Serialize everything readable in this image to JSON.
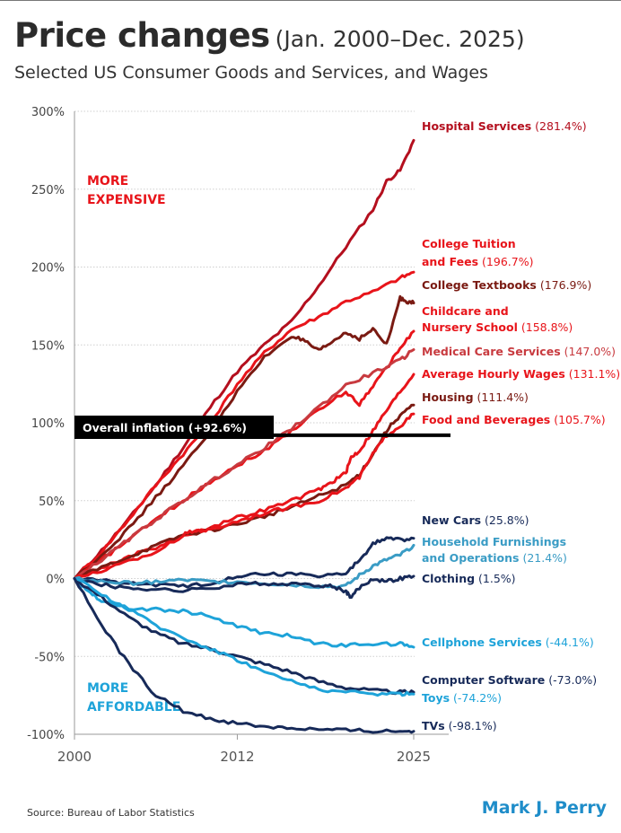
{
  "title": "Price changes",
  "date_range": "(Jan. 2000–Dec. 2025)",
  "subtitle": "Selected US Consumer Goods and Services, and Wages",
  "source": "Source:  Bureau of Labor Statistics",
  "brand": "Mark J. Perry",
  "colors": {
    "red": "#e8141a",
    "dark_red": "#b40f1e",
    "brown": "#7a1a12",
    "rose": "#c83a3f",
    "navy": "#172a59",
    "light_blue": "#1ea3d9",
    "teal_blue": "#3a9cc5",
    "inflation_box": "#000000",
    "grid": "#cfcfcf"
  },
  "chart_data": {
    "type": "line",
    "x_domain": [
      2000,
      2025
    ],
    "ylim": [
      -100,
      300
    ],
    "y_unit": "%",
    "y_ticks": [
      "300%",
      "250%",
      "200%",
      "150%",
      "100%",
      "50%",
      "0%",
      "-50%",
      "-100%"
    ],
    "y_tick_values": [
      300,
      250,
      200,
      150,
      100,
      50,
      0,
      -50,
      -100
    ],
    "x_ticks": [
      "2000",
      "2012",
      "2025"
    ],
    "x_tick_values": [
      2000,
      2012,
      2025
    ],
    "grid": "horizontal dotted",
    "region_labels": {
      "more_expensive": [
        "MORE",
        "EXPENSIVE"
      ],
      "more_affordable": [
        "MORE",
        "AFFORDABLE"
      ]
    },
    "reference_line": {
      "label": "Overall inflation (+92.6%)",
      "value": 92.6
    },
    "series": [
      {
        "name": "Hospital Services",
        "label": [
          "Hospital Services"
        ],
        "value_text": "(281.4%)",
        "final": 281.4,
        "color": "#b40f1e",
        "x": [
          2000,
          2002,
          2004,
          2006,
          2008,
          2010,
          2012,
          2014,
          2016,
          2018,
          2020,
          2022,
          2023,
          2024,
          2025
        ],
        "y": [
          0,
          18,
          38,
          60,
          84,
          110,
          133,
          150,
          165,
          188,
          213,
          237,
          255,
          262,
          281.4
        ]
      },
      {
        "name": "College Tuition and Fees",
        "label": [
          "College Tuition",
          "and Fees"
        ],
        "value_text": "(196.7%)",
        "final": 196.7,
        "color": "#e8141a",
        "x": [
          2000,
          2002,
          2004,
          2006,
          2008,
          2010,
          2012,
          2014,
          2016,
          2018,
          2020,
          2022,
          2024,
          2025
        ],
        "y": [
          0,
          17,
          38,
          60,
          80,
          100,
          125,
          145,
          160,
          168,
          178,
          184,
          193,
          196.7
        ]
      },
      {
        "name": "College Textbooks",
        "label": [
          "College Textbooks"
        ],
        "value_text": "(176.9%)",
        "final": 176.9,
        "color": "#7a1a12",
        "x": [
          2000,
          2002,
          2004,
          2006,
          2008,
          2010,
          2012,
          2014,
          2016,
          2017,
          2018,
          2019,
          2020,
          2021,
          2022,
          2023,
          2024,
          2024.5,
          2025
        ],
        "y": [
          0,
          15,
          32,
          52,
          72,
          95,
          120,
          142,
          156,
          152,
          146,
          152,
          158,
          154,
          160,
          150,
          180,
          178,
          176.9
        ]
      },
      {
        "name": "Childcare and Nursery School",
        "label": [
          "Childcare and",
          "Nursery School"
        ],
        "value_text": "(158.8%)",
        "final": 158.8,
        "color": "#e8141a",
        "x": [
          2000,
          2002,
          2004,
          2006,
          2008,
          2010,
          2012,
          2014,
          2016,
          2018,
          2020,
          2021,
          2022,
          2023,
          2024,
          2025
        ],
        "y": [
          0,
          12,
          25,
          38,
          50,
          62,
          73,
          82,
          95,
          108,
          120,
          112,
          124,
          135,
          148,
          158.8
        ]
      },
      {
        "name": "Medical Care Services",
        "label": [
          "Medical Care Services"
        ],
        "value_text": "(147.0%)",
        "final": 147.0,
        "color": "#c83a3f",
        "x": [
          2000,
          2002,
          2004,
          2006,
          2008,
          2010,
          2012,
          2014,
          2016,
          2018,
          2020,
          2022,
          2024,
          2025
        ],
        "y": [
          0,
          12,
          25,
          38,
          50,
          62,
          73,
          84,
          96,
          110,
          124,
          132,
          140,
          147.0
        ]
      },
      {
        "name": "Average Hourly Wages",
        "label": [
          "Average Hourly Wages"
        ],
        "value_text": "(131.1%)",
        "final": 131.1,
        "color": "#e8141a",
        "x": [
          2000,
          2002,
          2004,
          2006,
          2008,
          2010,
          2012,
          2014,
          2016,
          2018,
          2019,
          2020,
          2020.4,
          2021,
          2022,
          2023,
          2024,
          2025
        ],
        "y": [
          0,
          7,
          14,
          20,
          27,
          33,
          39,
          44,
          50,
          57,
          62,
          68,
          78,
          82,
          95,
          108,
          120,
          131.1
        ]
      },
      {
        "name": "Housing",
        "label": [
          "Housing"
        ],
        "value_text": "(111.4%)",
        "final": 111.4,
        "color": "#7a1a12",
        "x": [
          2000,
          2002,
          2004,
          2006,
          2008,
          2010,
          2012,
          2014,
          2016,
          2018,
          2020,
          2021,
          2022,
          2023,
          2024,
          2025
        ],
        "y": [
          0,
          7,
          14,
          21,
          28,
          31,
          35,
          40,
          46,
          53,
          60,
          67,
          80,
          95,
          105,
          111.4
        ]
      },
      {
        "name": "Food and Beverages",
        "label": [
          "Food and Beverages"
        ],
        "value_text": "(105.7%)",
        "final": 105.7,
        "color": "#e8141a",
        "x": [
          2000,
          2002,
          2004,
          2006,
          2008,
          2009,
          2010,
          2012,
          2014,
          2016,
          2018,
          2020,
          2021,
          2022,
          2023,
          2024,
          2025
        ],
        "y": [
          0,
          5,
          11,
          17,
          28,
          31,
          31,
          37,
          42,
          46,
          50,
          58,
          65,
          80,
          92,
          98,
          105.7
        ]
      },
      {
        "name": "New Cars",
        "label": [
          "New Cars"
        ],
        "value_text": "(25.8%)",
        "final": 25.8,
        "color": "#172a59",
        "x": [
          2000,
          2002,
          2004,
          2006,
          2008,
          2010,
          2012,
          2014,
          2016,
          2018,
          2020,
          2021,
          2022,
          2023,
          2024,
          2025
        ],
        "y": [
          0,
          -1,
          -3,
          -4,
          -5,
          -3,
          2,
          3,
          3,
          2,
          3,
          12,
          22,
          26,
          25,
          25.8
        ]
      },
      {
        "name": "Household Furnishings and Operations",
        "label": [
          "Household Furnishings",
          "and Operations"
        ],
        "value_text": "(21.4%)",
        "final": 21.4,
        "color": "#3a9cc5",
        "x": [
          2000,
          2002,
          2004,
          2006,
          2008,
          2010,
          2012,
          2014,
          2016,
          2018,
          2020,
          2021,
          2022,
          2023,
          2024,
          2025
        ],
        "y": [
          0,
          -2,
          -3,
          -2,
          -1,
          -2,
          -2,
          -3,
          -4,
          -5,
          -5,
          2,
          8,
          12,
          15,
          21.4
        ]
      },
      {
        "name": "Clothing",
        "label": [
          "Clothing"
        ],
        "value_text": "(1.5%)",
        "final": 1.5,
        "color": "#172a59",
        "x": [
          2000,
          2002,
          2004,
          2006,
          2008,
          2010,
          2012,
          2014,
          2016,
          2018,
          2019,
          2020,
          2020.3,
          2021,
          2022,
          2023,
          2024,
          2025
        ],
        "y": [
          0,
          -4,
          -6,
          -7,
          -8,
          -6,
          -4,
          -3,
          -4,
          -4,
          -5,
          -8,
          -12,
          -6,
          0,
          -2,
          0,
          1.5
        ]
      },
      {
        "name": "Cellphone Services",
        "label": [
          "Cellphone Services"
        ],
        "value_text": "(-44.1%)",
        "final": -44.1,
        "color": "#1ea3d9",
        "x": [
          2000,
          2001,
          2002,
          2004,
          2006,
          2008,
          2010,
          2012,
          2014,
          2016,
          2018,
          2020,
          2022,
          2024,
          2025
        ],
        "y": [
          0,
          -8,
          -14,
          -19,
          -20,
          -21,
          -24,
          -31,
          -35,
          -37,
          -42,
          -43,
          -42,
          -42,
          -44.1
        ]
      },
      {
        "name": "Computer Software",
        "label": [
          "Computer Software"
        ],
        "value_text": "(-73.0%)",
        "final": -73.0,
        "color": "#172a59",
        "x": [
          2000,
          2002,
          2004,
          2006,
          2008,
          2010,
          2012,
          2014,
          2016,
          2018,
          2020,
          2022,
          2024,
          2025
        ],
        "y": [
          0,
          -12,
          -25,
          -35,
          -42,
          -45,
          -50,
          -55,
          -60,
          -66,
          -70,
          -72,
          -73,
          -73.0
        ]
      },
      {
        "name": "Toys",
        "label": [
          "Toys"
        ],
        "value_text": "(-74.2%)",
        "final": -74.2,
        "color": "#1ea3d9",
        "x": [
          2000,
          2002,
          2004,
          2006,
          2008,
          2010,
          2012,
          2014,
          2016,
          2018,
          2020,
          2022,
          2024,
          2025
        ],
        "y": [
          0,
          -10,
          -20,
          -30,
          -38,
          -45,
          -52,
          -60,
          -66,
          -71,
          -73,
          -74,
          -74,
          -74.2
        ]
      },
      {
        "name": "TVs",
        "label": [
          "TVs"
        ],
        "value_text": "(-98.1%)",
        "final": -98.1,
        "color": "#172a59",
        "x": [
          2000,
          2002,
          2004,
          2006,
          2008,
          2010,
          2012,
          2014,
          2016,
          2018,
          2020,
          2022,
          2024,
          2025
        ],
        "y": [
          0,
          -30,
          -55,
          -75,
          -85,
          -90,
          -93,
          -95,
          -96,
          -97,
          -97.5,
          -98,
          -98,
          -98.1
        ]
      }
    ]
  }
}
